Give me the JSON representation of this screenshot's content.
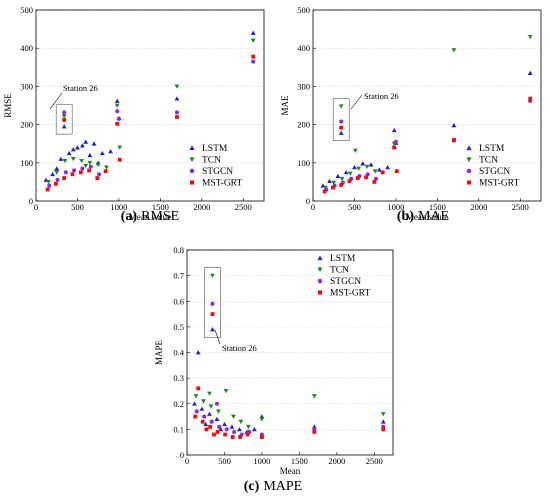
{
  "colors": {
    "LSTM": "#1f22cc",
    "TCN": "#1a8c1a",
    "STGCN": "#8a2be2",
    "MST-GRT": "#e81010"
  },
  "chart_data": [
    {
      "id": "rmse",
      "type": "scatter",
      "caption": {
        "letter": "(a)",
        "text": "RMSE"
      },
      "xlabel": "Mean value",
      "ylabel": "RMSE",
      "xlim": [
        0,
        2750
      ],
      "ylim": [
        0,
        500
      ],
      "xticks": [
        0,
        500,
        1000,
        1500,
        2000,
        2500
      ],
      "yticks": [
        0,
        100,
        200,
        300,
        400,
        500
      ],
      "grid": true,
      "legend_placement": "bottom-right",
      "annotation": {
        "text": "Station 26"
      },
      "series": [
        {
          "name": "LSTM",
          "marker": "triangle-up",
          "points": [
            [
              340,
              195
            ],
            [
              980,
              262
            ],
            [
              1000,
              217
            ],
            [
              1700,
              268
            ],
            [
              2620,
              440
            ],
            [
              120,
              55
            ],
            [
              200,
              70
            ],
            [
              250,
              85
            ],
            [
              300,
              110
            ],
            [
              400,
              125
            ],
            [
              450,
              135
            ],
            [
              500,
              140
            ],
            [
              600,
              155
            ],
            [
              700,
              150
            ],
            [
              800,
              125
            ],
            [
              900,
              130
            ],
            [
              560,
              145
            ],
            [
              650,
              120
            ],
            [
              750,
              100
            ]
          ]
        },
        {
          "name": "TCN",
          "marker": "triangle-down",
          "points": [
            [
              340,
              222
            ],
            [
              980,
              250
            ],
            [
              1010,
              140
            ],
            [
              1700,
              300
            ],
            [
              2620,
              420
            ],
            [
              150,
              50
            ],
            [
              250,
              75
            ],
            [
              350,
              105
            ],
            [
              450,
              110
            ],
            [
              550,
              105
            ],
            [
              650,
              100
            ],
            [
              750,
              95
            ],
            [
              850,
              88
            ],
            [
              600,
              92
            ]
          ]
        },
        {
          "name": "STGCN",
          "marker": "circle",
          "points": [
            [
              340,
              232
            ],
            [
              980,
              235
            ],
            [
              1000,
              215
            ],
            [
              1700,
              232
            ],
            [
              2620,
              365
            ],
            [
              160,
              40
            ],
            [
              260,
              55
            ],
            [
              360,
              75
            ],
            [
              460,
              80
            ],
            [
              560,
              85
            ],
            [
              660,
              90
            ],
            [
              760,
              70
            ]
          ]
        },
        {
          "name": "MST-GRT",
          "marker": "square",
          "points": [
            [
              340,
              212
            ],
            [
              980,
              202
            ],
            [
              1010,
              108
            ],
            [
              1700,
              220
            ],
            [
              2620,
              378
            ],
            [
              140,
              30
            ],
            [
              240,
              45
            ],
            [
              340,
              60
            ],
            [
              440,
              70
            ],
            [
              540,
              75
            ],
            [
              640,
              80
            ],
            [
              740,
              60
            ],
            [
              840,
              78
            ]
          ]
        }
      ]
    },
    {
      "id": "mae",
      "type": "scatter",
      "caption": {
        "letter": "(b)",
        "text": "MAE"
      },
      "xlabel": "Mean value",
      "ylabel": "MAE",
      "xlim": [
        0,
        2750
      ],
      "ylim": [
        0,
        500
      ],
      "xticks": [
        0,
        500,
        1000,
        1500,
        2000,
        2500
      ],
      "yticks": [
        0,
        100,
        200,
        300,
        400,
        500
      ],
      "grid": true,
      "legend_placement": "bottom-right",
      "annotation": {
        "text": "Station 26"
      },
      "series": [
        {
          "name": "LSTM",
          "marker": "triangle-up",
          "points": [
            [
              340,
              178
            ],
            [
              980,
              185
            ],
            [
              1000,
              152
            ],
            [
              1700,
              198
            ],
            [
              2620,
              335
            ],
            [
              120,
              40
            ],
            [
              200,
              52
            ],
            [
              300,
              65
            ],
            [
              400,
              75
            ],
            [
              500,
              88
            ],
            [
              600,
              98
            ],
            [
              700,
              95
            ],
            [
              800,
              82
            ],
            [
              900,
              88
            ]
          ]
        },
        {
          "name": "TCN",
          "marker": "triangle-down",
          "points": [
            [
              340,
              248
            ],
            [
              980,
              150
            ],
            [
              1700,
              395
            ],
            [
              2620,
              430
            ],
            [
              150,
              35
            ],
            [
              250,
              48
            ],
            [
              350,
              58
            ],
            [
              450,
              72
            ],
            [
              550,
              85
            ],
            [
              650,
              90
            ],
            [
              750,
              78
            ],
            [
              510,
              132
            ]
          ]
        },
        {
          "name": "STGCN",
          "marker": "circle",
          "points": [
            [
              340,
              208
            ],
            [
              980,
              140
            ],
            [
              1000,
              155
            ],
            [
              1700,
              158
            ],
            [
              2620,
              262
            ],
            [
              160,
              30
            ],
            [
              260,
              40
            ],
            [
              360,
              48
            ],
            [
              460,
              58
            ],
            [
              560,
              65
            ],
            [
              660,
              70
            ],
            [
              760,
              58
            ]
          ]
        },
        {
          "name": "MST-GRT",
          "marker": "square",
          "points": [
            [
              340,
              192
            ],
            [
              980,
              140
            ],
            [
              1010,
              78
            ],
            [
              1700,
              160
            ],
            [
              2620,
              268
            ],
            [
              140,
              25
            ],
            [
              240,
              35
            ],
            [
              340,
              42
            ],
            [
              440,
              52
            ],
            [
              540,
              60
            ],
            [
              640,
              62
            ],
            [
              740,
              50
            ],
            [
              840,
              75
            ]
          ]
        }
      ]
    },
    {
      "id": "mape",
      "type": "scatter",
      "caption": {
        "letter": "(c)",
        "text": "MAPE"
      },
      "xlabel": "Mean",
      "ylabel": "MAPE",
      "xlim": [
        0,
        2750
      ],
      "ylim": [
        0,
        0.8
      ],
      "xticks": [
        0,
        500,
        1000,
        1500,
        2000,
        2500
      ],
      "yticks": [
        0,
        0.1,
        0.2,
        0.3,
        0.4,
        0.5,
        0.6,
        0.7,
        0.8
      ],
      "grid": true,
      "legend_placement": "top-right",
      "annotation": {
        "text": "Station 26"
      },
      "series": [
        {
          "name": "LSTM",
          "marker": "triangle-up",
          "points": [
            [
              340,
              0.49
            ],
            [
              150,
              0.4
            ],
            [
              1700,
              0.11
            ],
            [
              2620,
              0.13
            ],
            [
              1000,
              0.15
            ],
            [
              100,
              0.2
            ],
            [
              200,
              0.18
            ],
            [
              300,
              0.16
            ],
            [
              400,
              0.14
            ],
            [
              500,
              0.12
            ],
            [
              600,
              0.11
            ],
            [
              700,
              0.1
            ],
            [
              800,
              0.09
            ],
            [
              900,
              0.1
            ],
            [
              250,
              0.12
            ],
            [
              450,
              0.1
            ]
          ]
        },
        {
          "name": "TCN",
          "marker": "triangle-down",
          "points": [
            [
              340,
              0.7
            ],
            [
              1700,
              0.23
            ],
            [
              2620,
              0.16
            ],
            [
              1000,
              0.14
            ],
            [
              520,
              0.25
            ],
            [
              120,
              0.23
            ],
            [
              220,
              0.21
            ],
            [
              320,
              0.19
            ],
            [
              420,
              0.17
            ],
            [
              620,
              0.15
            ],
            [
              720,
              0.13
            ],
            [
              820,
              0.11
            ],
            [
              300,
              0.24
            ]
          ]
        },
        {
          "name": "STGCN",
          "marker": "circle",
          "points": [
            [
              340,
              0.59
            ],
            [
              1700,
              0.1
            ],
            [
              2620,
              0.11
            ],
            [
              1000,
              0.08
            ],
            [
              130,
              0.17
            ],
            [
              230,
              0.15
            ],
            [
              330,
              0.13
            ],
            [
              430,
              0.11
            ],
            [
              530,
              0.1
            ],
            [
              630,
              0.09
            ],
            [
              730,
              0.08
            ],
            [
              830,
              0.09
            ],
            [
              400,
              0.2
            ]
          ]
        },
        {
          "name": "MST-GRT",
          "marker": "square",
          "points": [
            [
              340,
              0.55
            ],
            [
              150,
              0.26
            ],
            [
              1700,
              0.09
            ],
            [
              2620,
              0.1
            ],
            [
              1000,
              0.07
            ],
            [
              110,
              0.15
            ],
            [
              210,
              0.13
            ],
            [
              310,
              0.11
            ],
            [
              410,
              0.09
            ],
            [
              510,
              0.08
            ],
            [
              610,
              0.07
            ],
            [
              710,
              0.07
            ],
            [
              810,
              0.08
            ],
            [
              260,
              0.1
            ],
            [
              360,
              0.08
            ]
          ]
        }
      ]
    }
  ]
}
